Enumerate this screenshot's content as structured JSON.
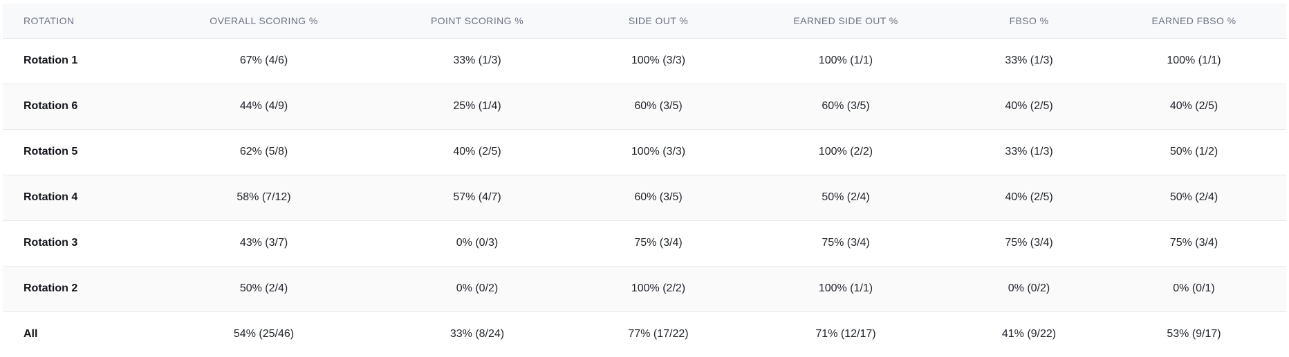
{
  "table": {
    "headers": [
      "ROTATION",
      "OVERALL SCORING %",
      "POINT SCORING %",
      "SIDE OUT %",
      "EARNED SIDE OUT %",
      "FBSO %",
      "EARNED FBSO %"
    ],
    "rows": [
      [
        "Rotation 1",
        "67% (4/6)",
        "33% (1/3)",
        "100% (3/3)",
        "100% (1/1)",
        "33% (1/3)",
        "100% (1/1)"
      ],
      [
        "Rotation 6",
        "44% (4/9)",
        "25% (1/4)",
        "60% (3/5)",
        "60% (3/5)",
        "40% (2/5)",
        "40% (2/5)"
      ],
      [
        "Rotation 5",
        "62% (5/8)",
        "40% (2/5)",
        "100% (3/3)",
        "100% (2/2)",
        "33% (1/3)",
        "50% (1/2)"
      ],
      [
        "Rotation 4",
        "58% (7/12)",
        "57% (4/7)",
        "60% (3/5)",
        "50% (2/4)",
        "40% (2/5)",
        "50% (2/4)"
      ],
      [
        "Rotation 3",
        "43% (3/7)",
        "0% (0/3)",
        "75% (3/4)",
        "75% (3/4)",
        "75% (3/4)",
        "75% (3/4)"
      ],
      [
        "Rotation 2",
        "50% (2/4)",
        "0% (0/2)",
        "100% (2/2)",
        "100% (1/1)",
        "0% (0/2)",
        "0% (0/1)"
      ],
      [
        "All",
        "54% (25/46)",
        "33% (8/24)",
        "77% (17/22)",
        "71% (12/17)",
        "41% (9/22)",
        "53% (9/17)"
      ]
    ]
  }
}
